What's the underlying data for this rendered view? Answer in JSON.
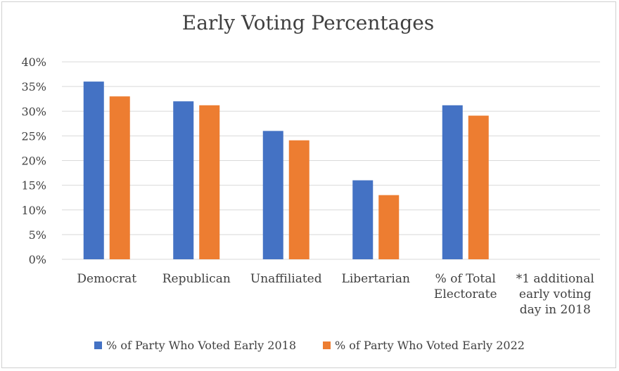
{
  "chart_data": {
    "type": "bar",
    "title": "Early Voting Percentages",
    "categories": [
      "Democrat",
      "Republican",
      "Unaffiliated",
      "Libertarian",
      "% of Total Electorate",
      "*1 additional early voting day in 2018"
    ],
    "category_lines": [
      [
        "Democrat"
      ],
      [
        "Republican"
      ],
      [
        "Unaffiliated"
      ],
      [
        "Libertarian"
      ],
      [
        "% of Total",
        "Electorate"
      ],
      [
        "*1 additional",
        "early voting",
        "day in 2018"
      ]
    ],
    "series": [
      {
        "name": "% of Party Who Voted Early 2018",
        "color": "#4472C4",
        "values": [
          36,
          32,
          26,
          16,
          31.2,
          null
        ]
      },
      {
        "name": "% of Party Who Voted Early 2022",
        "color": "#ED7D31",
        "values": [
          33,
          31.2,
          24.1,
          13,
          29.1,
          null
        ]
      }
    ],
    "yticks": [
      "0%",
      "5%",
      "10%",
      "15%",
      "20%",
      "25%",
      "30%",
      "35%",
      "40%"
    ],
    "ylim": [
      0,
      40
    ],
    "grid": true,
    "legend_position": "bottom"
  }
}
